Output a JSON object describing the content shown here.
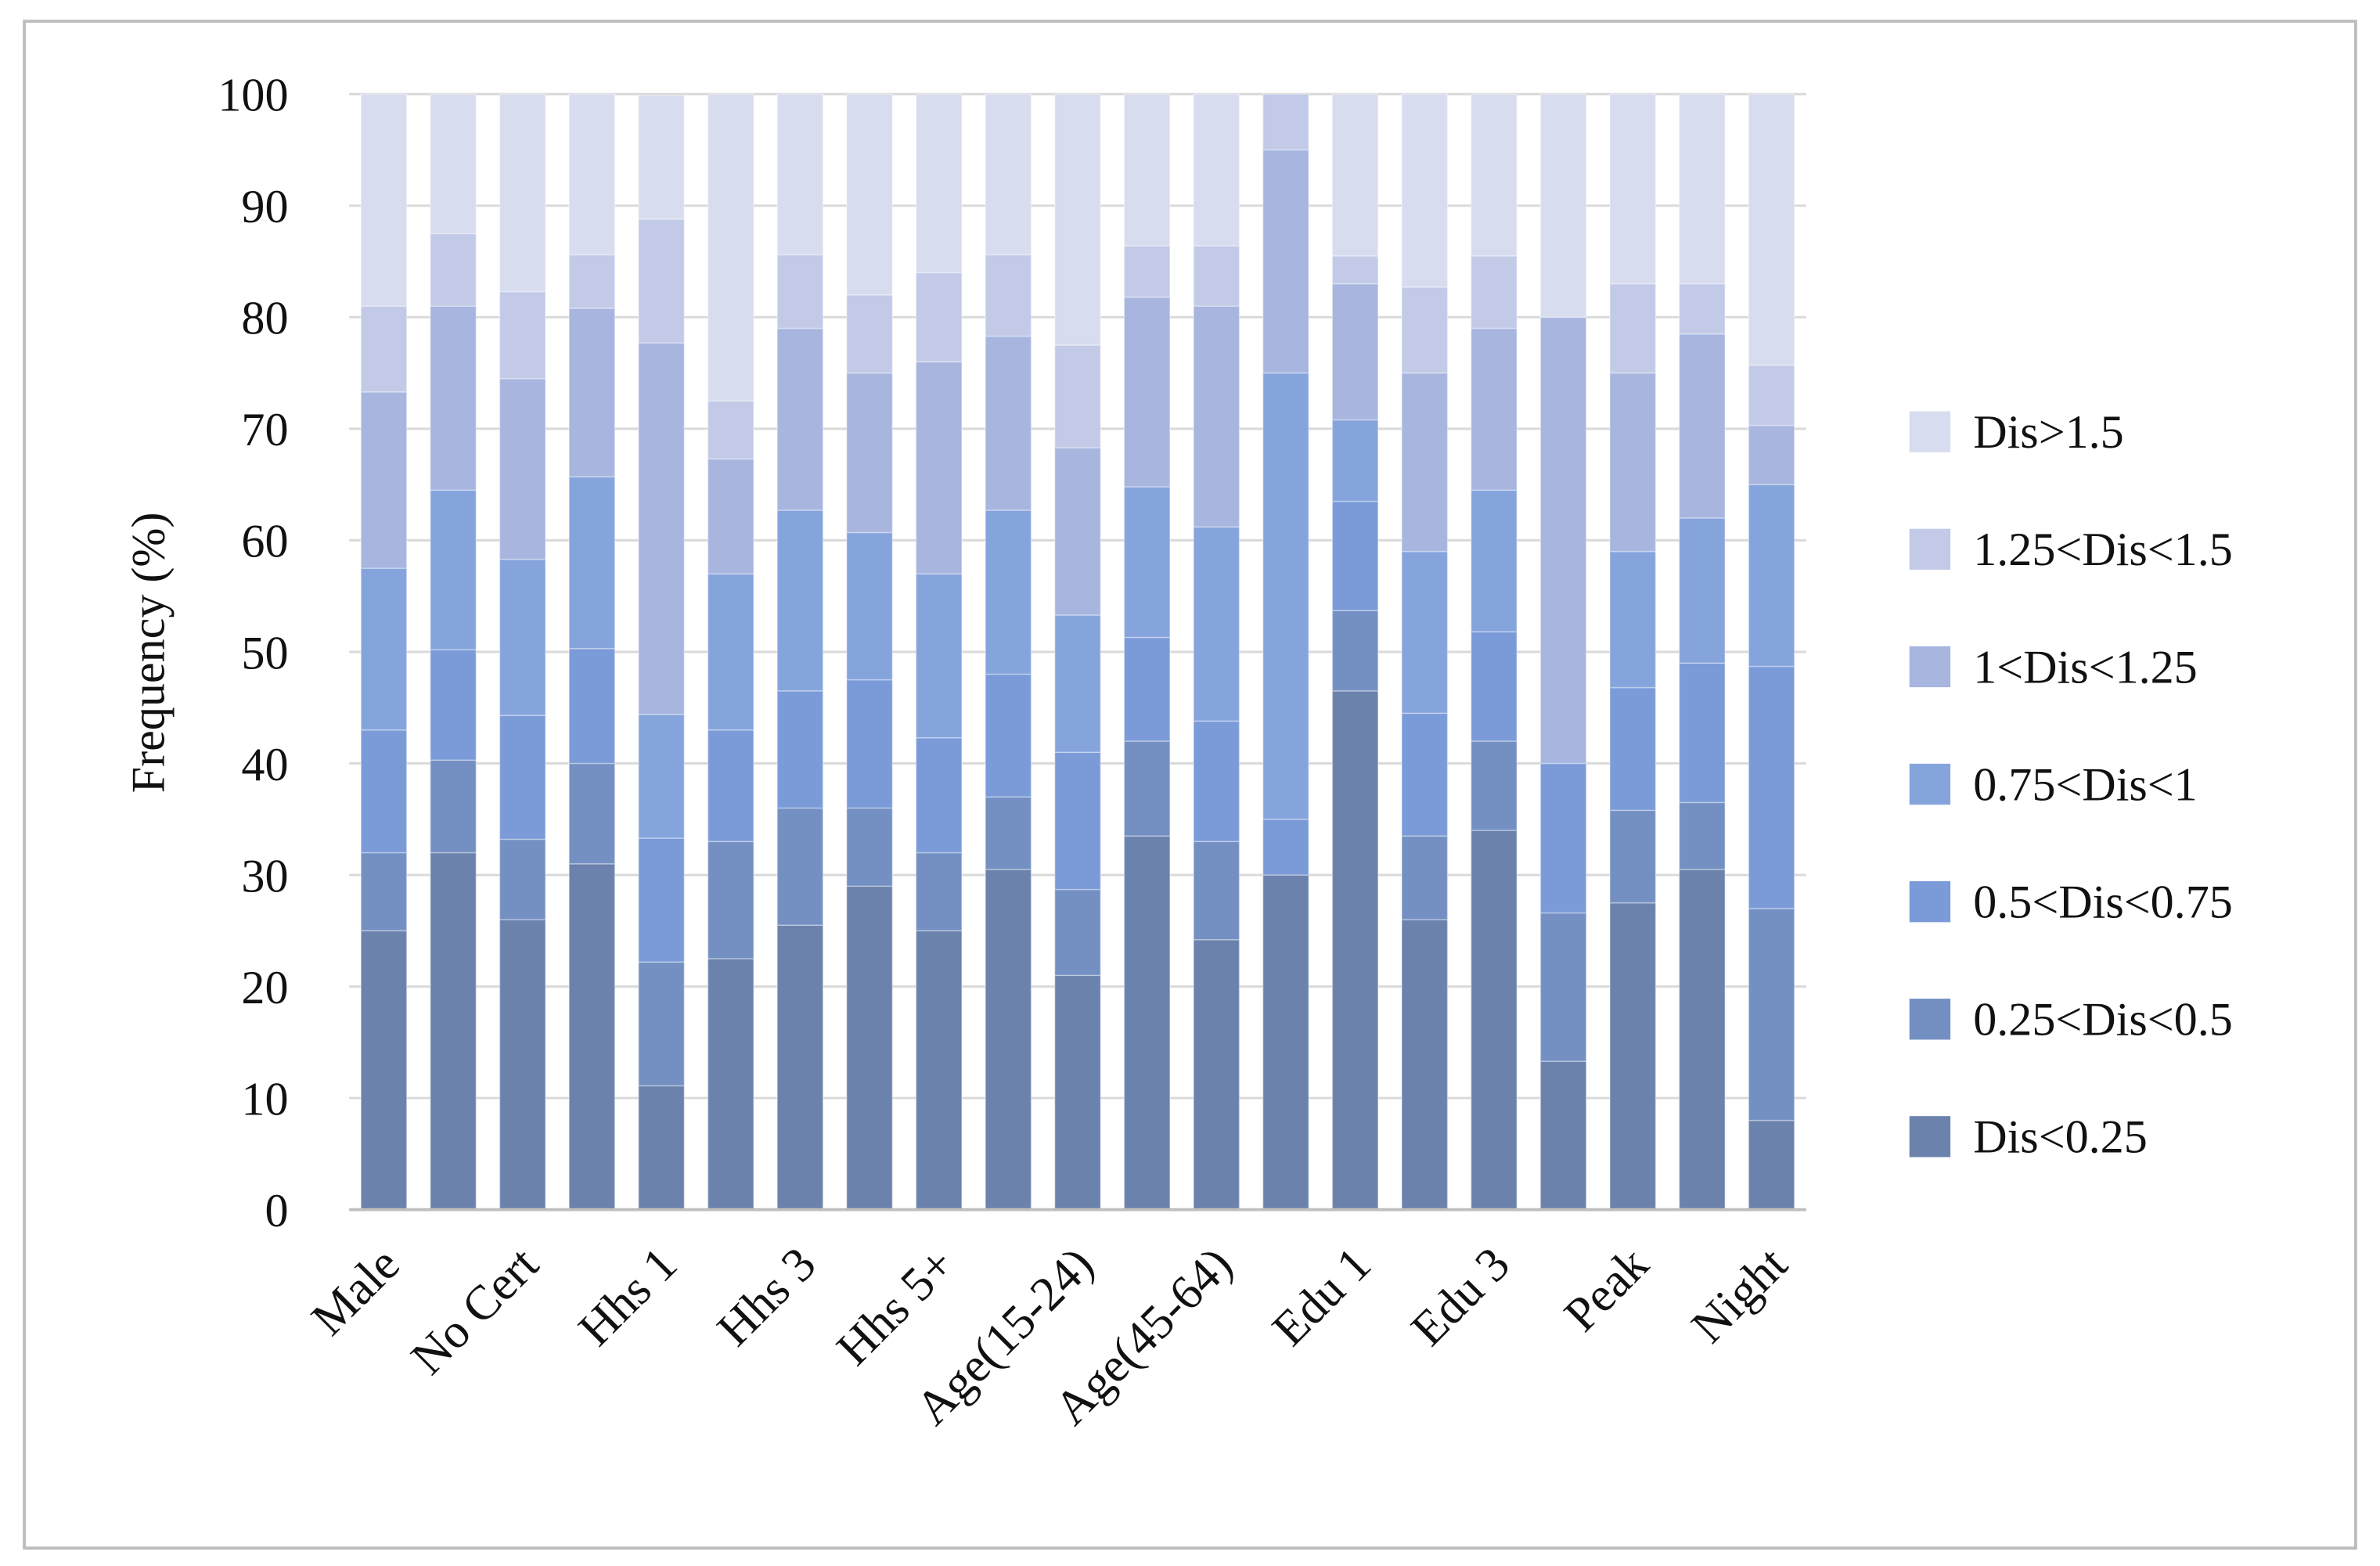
{
  "chart_data": {
    "type": "stacked_bar",
    "y_label": "Frequency (%)",
    "categories": [
      "Male",
      null,
      "No Cert",
      null,
      "Hhs 1",
      null,
      "Hhs  3",
      null,
      "Hhs 5+",
      null,
      "Age(15-24)",
      null,
      "Age(45-64)",
      null,
      "Edu 1",
      null,
      "Edu 3",
      null,
      "Peak",
      null,
      "Night"
    ],
    "series": [
      {
        "name": "Dis<0.25",
        "color": "#6b82ac",
        "values": [
          25,
          32,
          26,
          31,
          11.1,
          22.5,
          25.5,
          29,
          25,
          30.5,
          21,
          33.5,
          24.2,
          30,
          46.5,
          26,
          34,
          13.3,
          27.5,
          30.5,
          8
        ]
      },
      {
        "name": "0.25<Dis<0.5",
        "color": "#7490c3",
        "values": [
          7,
          8.3,
          7.2,
          9,
          11.1,
          10.5,
          10.5,
          7,
          7,
          6.5,
          7.7,
          8.5,
          8.8,
          0,
          7.2,
          7.5,
          8,
          13.3,
          8.3,
          6,
          19
        ]
      },
      {
        "name": "0.5<Dis<0.75",
        "color": "#7b9bd8",
        "values": [
          11,
          9.9,
          11.1,
          10.3,
          11.1,
          10,
          10.5,
          11.5,
          10.3,
          11,
          12.3,
          9.3,
          10.8,
          5,
          9.8,
          11,
          9.8,
          13.4,
          11,
          12.5,
          21.7
        ]
      },
      {
        "name": "0.75<Dis<1",
        "color": "#86a4dc",
        "values": [
          14.5,
          14.3,
          14,
          15.4,
          11.1,
          14,
          16.2,
          13.2,
          14.7,
          14.7,
          12.3,
          13.5,
          17.4,
          40,
          7.3,
          14.5,
          12.7,
          0,
          12.2,
          13,
          16.3
        ]
      },
      {
        "name": "1<Dis<1.25",
        "color": "#a7b5df",
        "values": [
          15.8,
          16.5,
          16.2,
          15.1,
          33.3,
          10.3,
          16.3,
          14.3,
          19,
          15.6,
          15,
          17,
          19.8,
          20,
          12.2,
          16,
          14.5,
          40,
          16,
          16.5,
          5.3
        ]
      },
      {
        "name": "1.25<Dis<1.5",
        "color": "#c2cae7",
        "values": [
          7.7,
          6.5,
          7.8,
          4.8,
          11.1,
          5.2,
          6.6,
          7,
          8,
          7.3,
          9.2,
          4.6,
          5.4,
          5,
          2.5,
          7.7,
          6.5,
          0,
          8,
          4.5,
          5.4
        ]
      },
      {
        "name": "Dis>1.5",
        "color": "#d7dcee",
        "values": [
          19,
          12.5,
          17.7,
          14.4,
          11.1,
          27.5,
          14.4,
          18,
          16,
          14.4,
          22.5,
          13.6,
          13.6,
          0,
          14.5,
          17.3,
          14.5,
          20,
          17,
          17,
          24.3
        ]
      }
    ],
    "ylim": [
      0,
      100
    ],
    "yticks": [
      0,
      10,
      20,
      30,
      40,
      50,
      60,
      70,
      80,
      90,
      100
    ],
    "grid": true,
    "legend": "right"
  }
}
